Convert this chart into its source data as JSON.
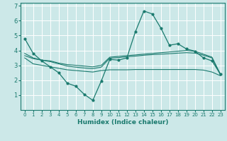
{
  "xlabel": "Humidex (Indice chaleur)",
  "bg_color": "#cce8e8",
  "line_color": "#1a7a6e",
  "grid_color": "#ffffff",
  "xlim": [
    -0.5,
    23.5
  ],
  "ylim": [
    0,
    7.2
  ],
  "yticks": [
    1,
    2,
    3,
    4,
    5,
    6,
    7
  ],
  "xticks": [
    0,
    1,
    2,
    3,
    4,
    5,
    6,
    7,
    8,
    9,
    10,
    11,
    12,
    13,
    14,
    15,
    16,
    17,
    18,
    19,
    20,
    21,
    22,
    23
  ],
  "line1_x": [
    0,
    1,
    2,
    3,
    4,
    5,
    6,
    7,
    8,
    9,
    10,
    11,
    12,
    13,
    14,
    15,
    16,
    17,
    18,
    19,
    20,
    21,
    22,
    23
  ],
  "line1_y": [
    4.8,
    3.8,
    3.3,
    2.9,
    2.5,
    1.8,
    1.6,
    1.05,
    0.65,
    1.95,
    3.4,
    3.35,
    3.5,
    5.25,
    6.65,
    6.45,
    5.5,
    4.35,
    4.45,
    4.1,
    3.95,
    3.5,
    3.3,
    2.4
  ],
  "line2_x": [
    0,
    1,
    2,
    3,
    4,
    5,
    6,
    7,
    8,
    9,
    10,
    11,
    12,
    13,
    14,
    15,
    16,
    17,
    18,
    19,
    20,
    21,
    22,
    23
  ],
  "line2_y": [
    3.8,
    3.5,
    3.35,
    3.3,
    3.15,
    3.05,
    3.0,
    2.95,
    2.9,
    3.0,
    3.55,
    3.6,
    3.65,
    3.7,
    3.75,
    3.8,
    3.85,
    3.9,
    3.95,
    4.0,
    3.95,
    3.75,
    3.55,
    2.4
  ],
  "line3_x": [
    0,
    1,
    2,
    3,
    4,
    5,
    6,
    7,
    8,
    9,
    10,
    11,
    12,
    13,
    14,
    15,
    16,
    17,
    18,
    19,
    20,
    21,
    22,
    23
  ],
  "line3_y": [
    3.65,
    3.45,
    3.35,
    3.25,
    3.1,
    2.95,
    2.88,
    2.82,
    2.78,
    2.88,
    3.48,
    3.52,
    3.58,
    3.62,
    3.68,
    3.72,
    3.75,
    3.78,
    3.82,
    3.85,
    3.82,
    3.68,
    3.5,
    2.35
  ],
  "line4_x": [
    0,
    1,
    2,
    3,
    4,
    5,
    6,
    7,
    8,
    9,
    10,
    11,
    12,
    13,
    14,
    15,
    16,
    17,
    18,
    19,
    20,
    21,
    22,
    23
  ],
  "line4_y": [
    3.5,
    3.1,
    3.0,
    2.9,
    2.8,
    2.7,
    2.65,
    2.6,
    2.55,
    2.65,
    2.7,
    2.7,
    2.7,
    2.72,
    2.72,
    2.72,
    2.72,
    2.72,
    2.72,
    2.72,
    2.72,
    2.68,
    2.55,
    2.3
  ]
}
